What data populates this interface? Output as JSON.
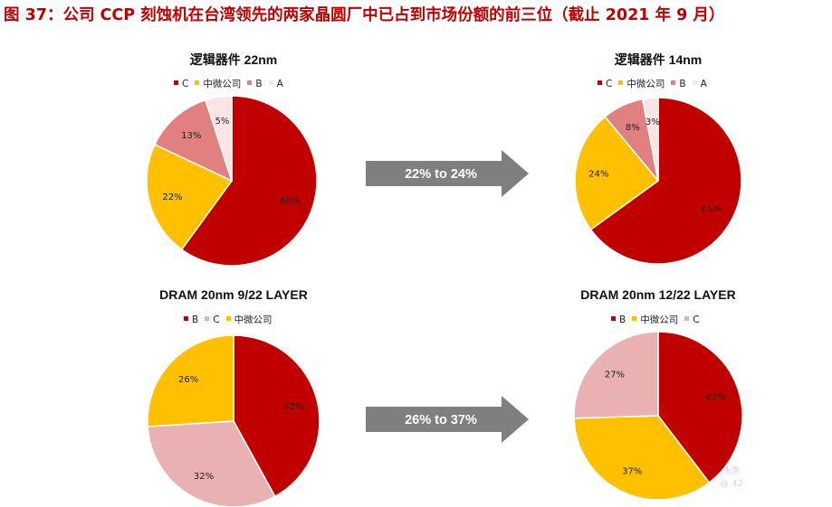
{
  "figure_title": "图 37：公司 CCP 刻蚀机在台湾领先的两家晶圆厂中已占到市场份额的前三位（截止 2021 年 9 月）",
  "arrows": [
    {
      "label": "22% to 24%"
    },
    {
      "label": "26% to 37%"
    }
  ],
  "watermark": [
    "头条",
    "@ 42"
  ],
  "colors": {
    "C_logic": "#c00000",
    "zhongwei": "#ffc000",
    "B_logic": "#e08080",
    "A": "#fce4e4",
    "C_dram": "#e9b1b1",
    "arrow": "#7f7f7f"
  },
  "chart_data": [
    {
      "type": "pie",
      "title": "逻辑器件 22nm",
      "legend": [
        "C",
        "中微公司",
        "B",
        "A"
      ],
      "slices": [
        {
          "label": "C",
          "value": 60,
          "text": "60%",
          "color": "#c00000"
        },
        {
          "label": "中微公司",
          "value": 22,
          "text": "22%",
          "color": "#ffc000"
        },
        {
          "label": "B",
          "value": 13,
          "text": "13%",
          "color": "#e08080"
        },
        {
          "label": "A",
          "value": 5,
          "text": "5%",
          "color": "#fce4e4"
        }
      ]
    },
    {
      "type": "pie",
      "title": "逻辑器件 14nm",
      "legend": [
        "C",
        "中微公司",
        "B",
        "A"
      ],
      "slices": [
        {
          "label": "C",
          "value": 65,
          "text": "65%",
          "color": "#c00000"
        },
        {
          "label": "中微公司",
          "value": 24,
          "text": "24%",
          "color": "#ffc000"
        },
        {
          "label": "B",
          "value": 8,
          "text": "8%",
          "color": "#e08080"
        },
        {
          "label": "A",
          "value": 3,
          "text": "3%",
          "color": "#fce4e4"
        }
      ]
    },
    {
      "type": "pie",
      "title": "DRAM 20nm 9/22 LAYER",
      "legend": [
        "B",
        "C",
        "中微公司"
      ],
      "slices": [
        {
          "label": "B",
          "value": 42,
          "text": "42%",
          "color": "#c00000"
        },
        {
          "label": "C",
          "value": 32,
          "text": "32%",
          "color": "#e9b1b1"
        },
        {
          "label": "中微公司",
          "value": 26,
          "text": "26%",
          "color": "#ffc000"
        }
      ]
    },
    {
      "type": "pie",
      "title": "DRAM 20nm 12/22 LAYER",
      "legend": [
        "B",
        "中微公司",
        "C"
      ],
      "slices": [
        {
          "label": "B",
          "value": 42,
          "text": "42%",
          "color": "#c00000"
        },
        {
          "label": "中微公司",
          "value": 37,
          "text": "37%",
          "color": "#ffc000"
        },
        {
          "label": "C",
          "value": 27,
          "text": "27%",
          "color": "#e9b1b1"
        }
      ]
    }
  ]
}
